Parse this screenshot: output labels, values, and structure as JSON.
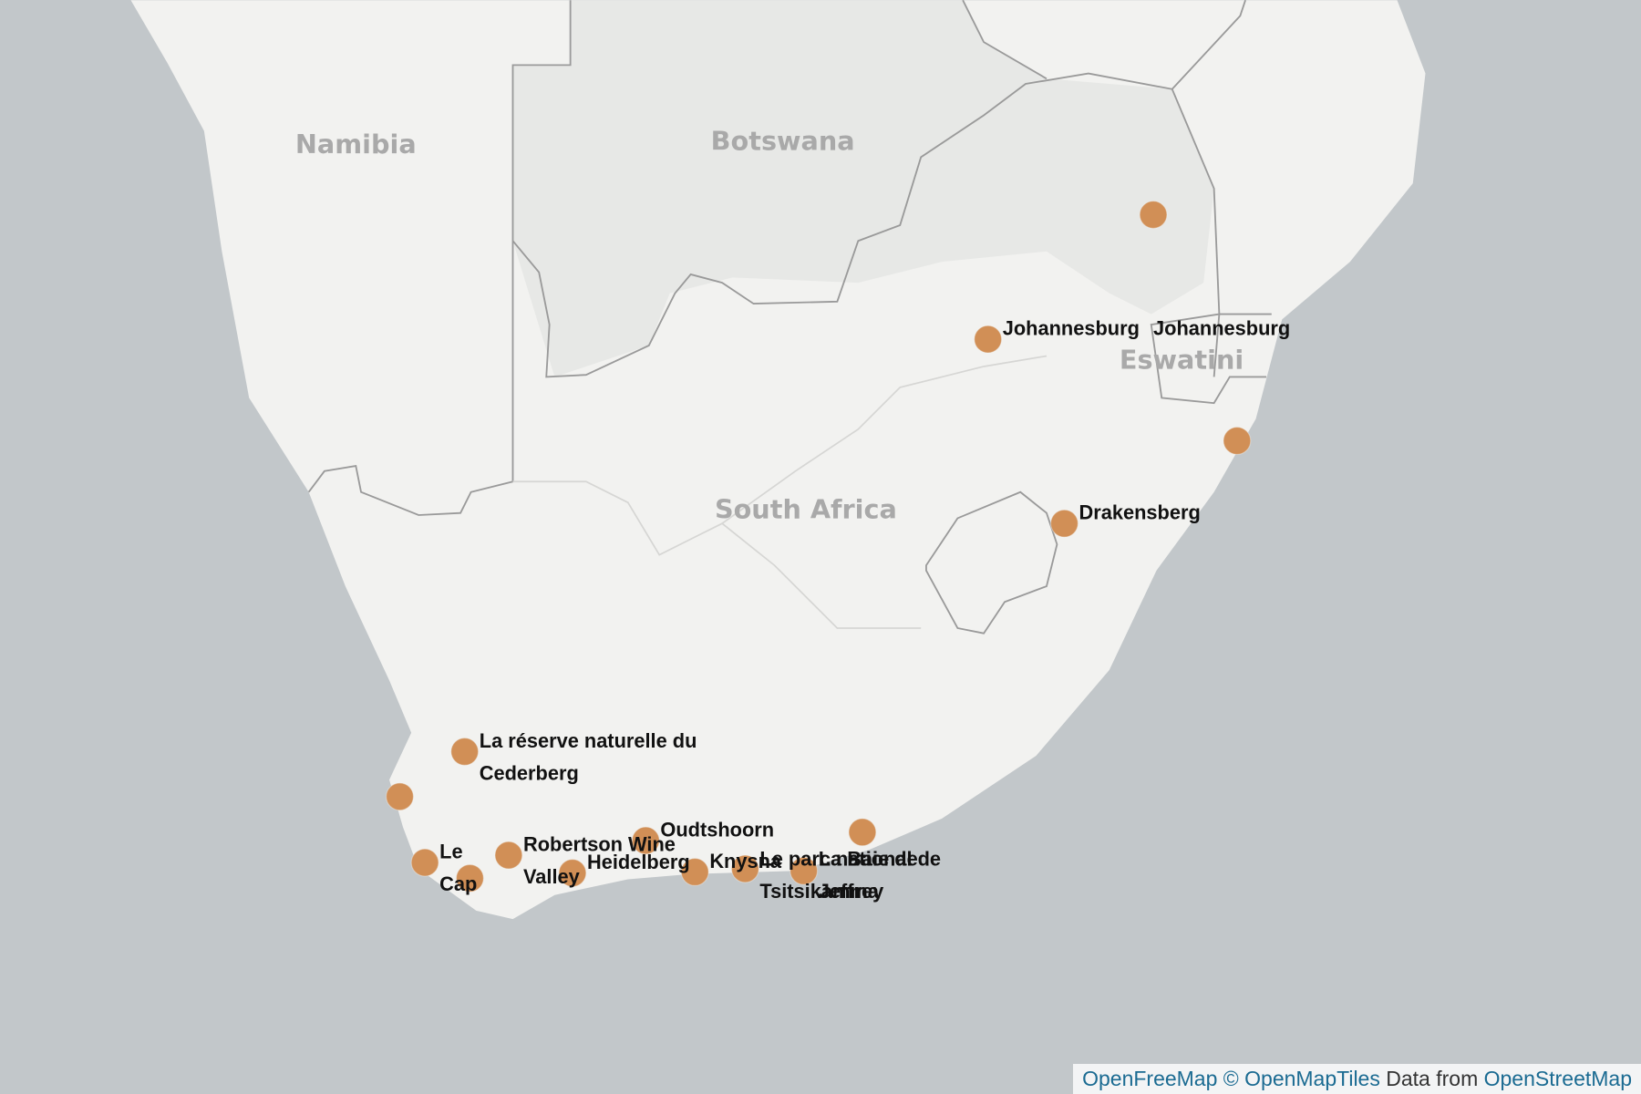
{
  "map": {
    "countries": [
      "Namibia",
      "Botswana",
      "South Africa",
      "Eswatini"
    ],
    "markers": [
      {
        "label": null
      },
      {
        "label": [
          "Johannesburg"
        ]
      },
      {
        "label": [
          "Johannesburg"
        ]
      },
      {
        "label": null
      },
      {
        "label": [
          "Drakensberg"
        ]
      },
      {
        "label": [
          "La réserve naturelle du",
          "Cederberg"
        ]
      },
      {
        "label": null
      },
      {
        "label": [
          "Le",
          "Cap"
        ]
      },
      {
        "label": null
      },
      {
        "label": [
          "Robertson Wine",
          "Valley"
        ]
      },
      {
        "label": [
          "Heidelberg"
        ]
      },
      {
        "label": [
          "Oudtshoorn"
        ]
      },
      {
        "label": [
          "Knysna"
        ]
      },
      {
        "label": [
          "Le parc national de",
          "Tsitsikamma"
        ]
      },
      {
        "label": [
          "La Baie de",
          "Jeffrey"
        ]
      },
      {
        "label": null
      }
    ],
    "attribution": {
      "link1": "OpenFreeMap",
      "link2": "© OpenMapTiles",
      "text": "Data from",
      "link3": "OpenStreetMap"
    }
  }
}
